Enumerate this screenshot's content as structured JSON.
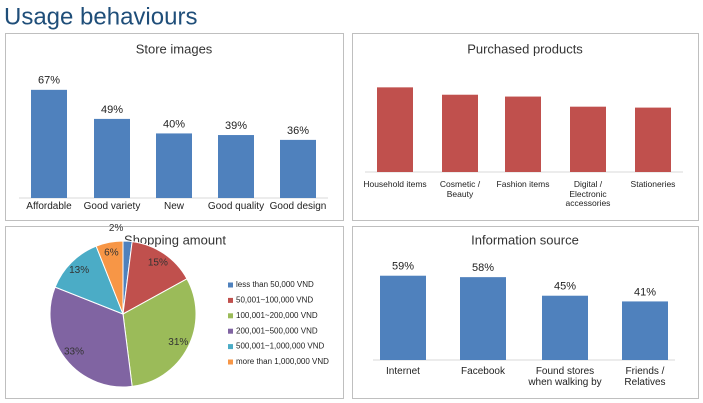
{
  "title": "Usage behaviours",
  "chart_data": [
    {
      "type": "bar",
      "title": "Store images",
      "categories": [
        "Affordable",
        "Good variety",
        "New",
        "Good quality",
        "Good design"
      ],
      "values": [
        67,
        49,
        40,
        39,
        36
      ],
      "value_labels": [
        "67%",
        "49%",
        "40%",
        "39%",
        "36%"
      ],
      "color": "#4f81bd",
      "ylim": [
        0,
        70
      ]
    },
    {
      "type": "bar",
      "title": "Purchased products",
      "categories": [
        "Household items",
        "Cosmetic / Beauty",
        "Fashion items",
        "Digital / Electronic accessories",
        "Stationeries"
      ],
      "values": [
        92,
        84,
        82,
        71,
        70
      ],
      "color": "#c0504d",
      "ylim": [
        0,
        100
      ]
    },
    {
      "type": "pie",
      "title": "Shopping amount",
      "categories": [
        "less than 50,000 VND",
        "50,001~100,000 VND",
        "100,001~200,000 VND",
        "200,001~500,000 VND",
        "500,001~1,000,000 VND",
        "more than 1,000,000 VND"
      ],
      "values": [
        2,
        15,
        31,
        33,
        13,
        6
      ],
      "value_labels": [
        "2%",
        "15%",
        "31%",
        "33%",
        "13%",
        "6%"
      ],
      "colors": [
        "#4f81bd",
        "#c0504d",
        "#9bbb59",
        "#8064a2",
        "#4bacc6",
        "#f79646"
      ],
      "legend": "right"
    },
    {
      "type": "bar",
      "title": "Information source",
      "categories": [
        "Internet",
        "Facebook",
        "Found stores when walking by",
        "Friends / Relatives"
      ],
      "values": [
        59,
        58,
        45,
        41
      ],
      "value_labels": [
        "59%",
        "58%",
        "45%",
        "41%"
      ],
      "color": "#4f81bd",
      "ylim": [
        0,
        70
      ]
    }
  ]
}
